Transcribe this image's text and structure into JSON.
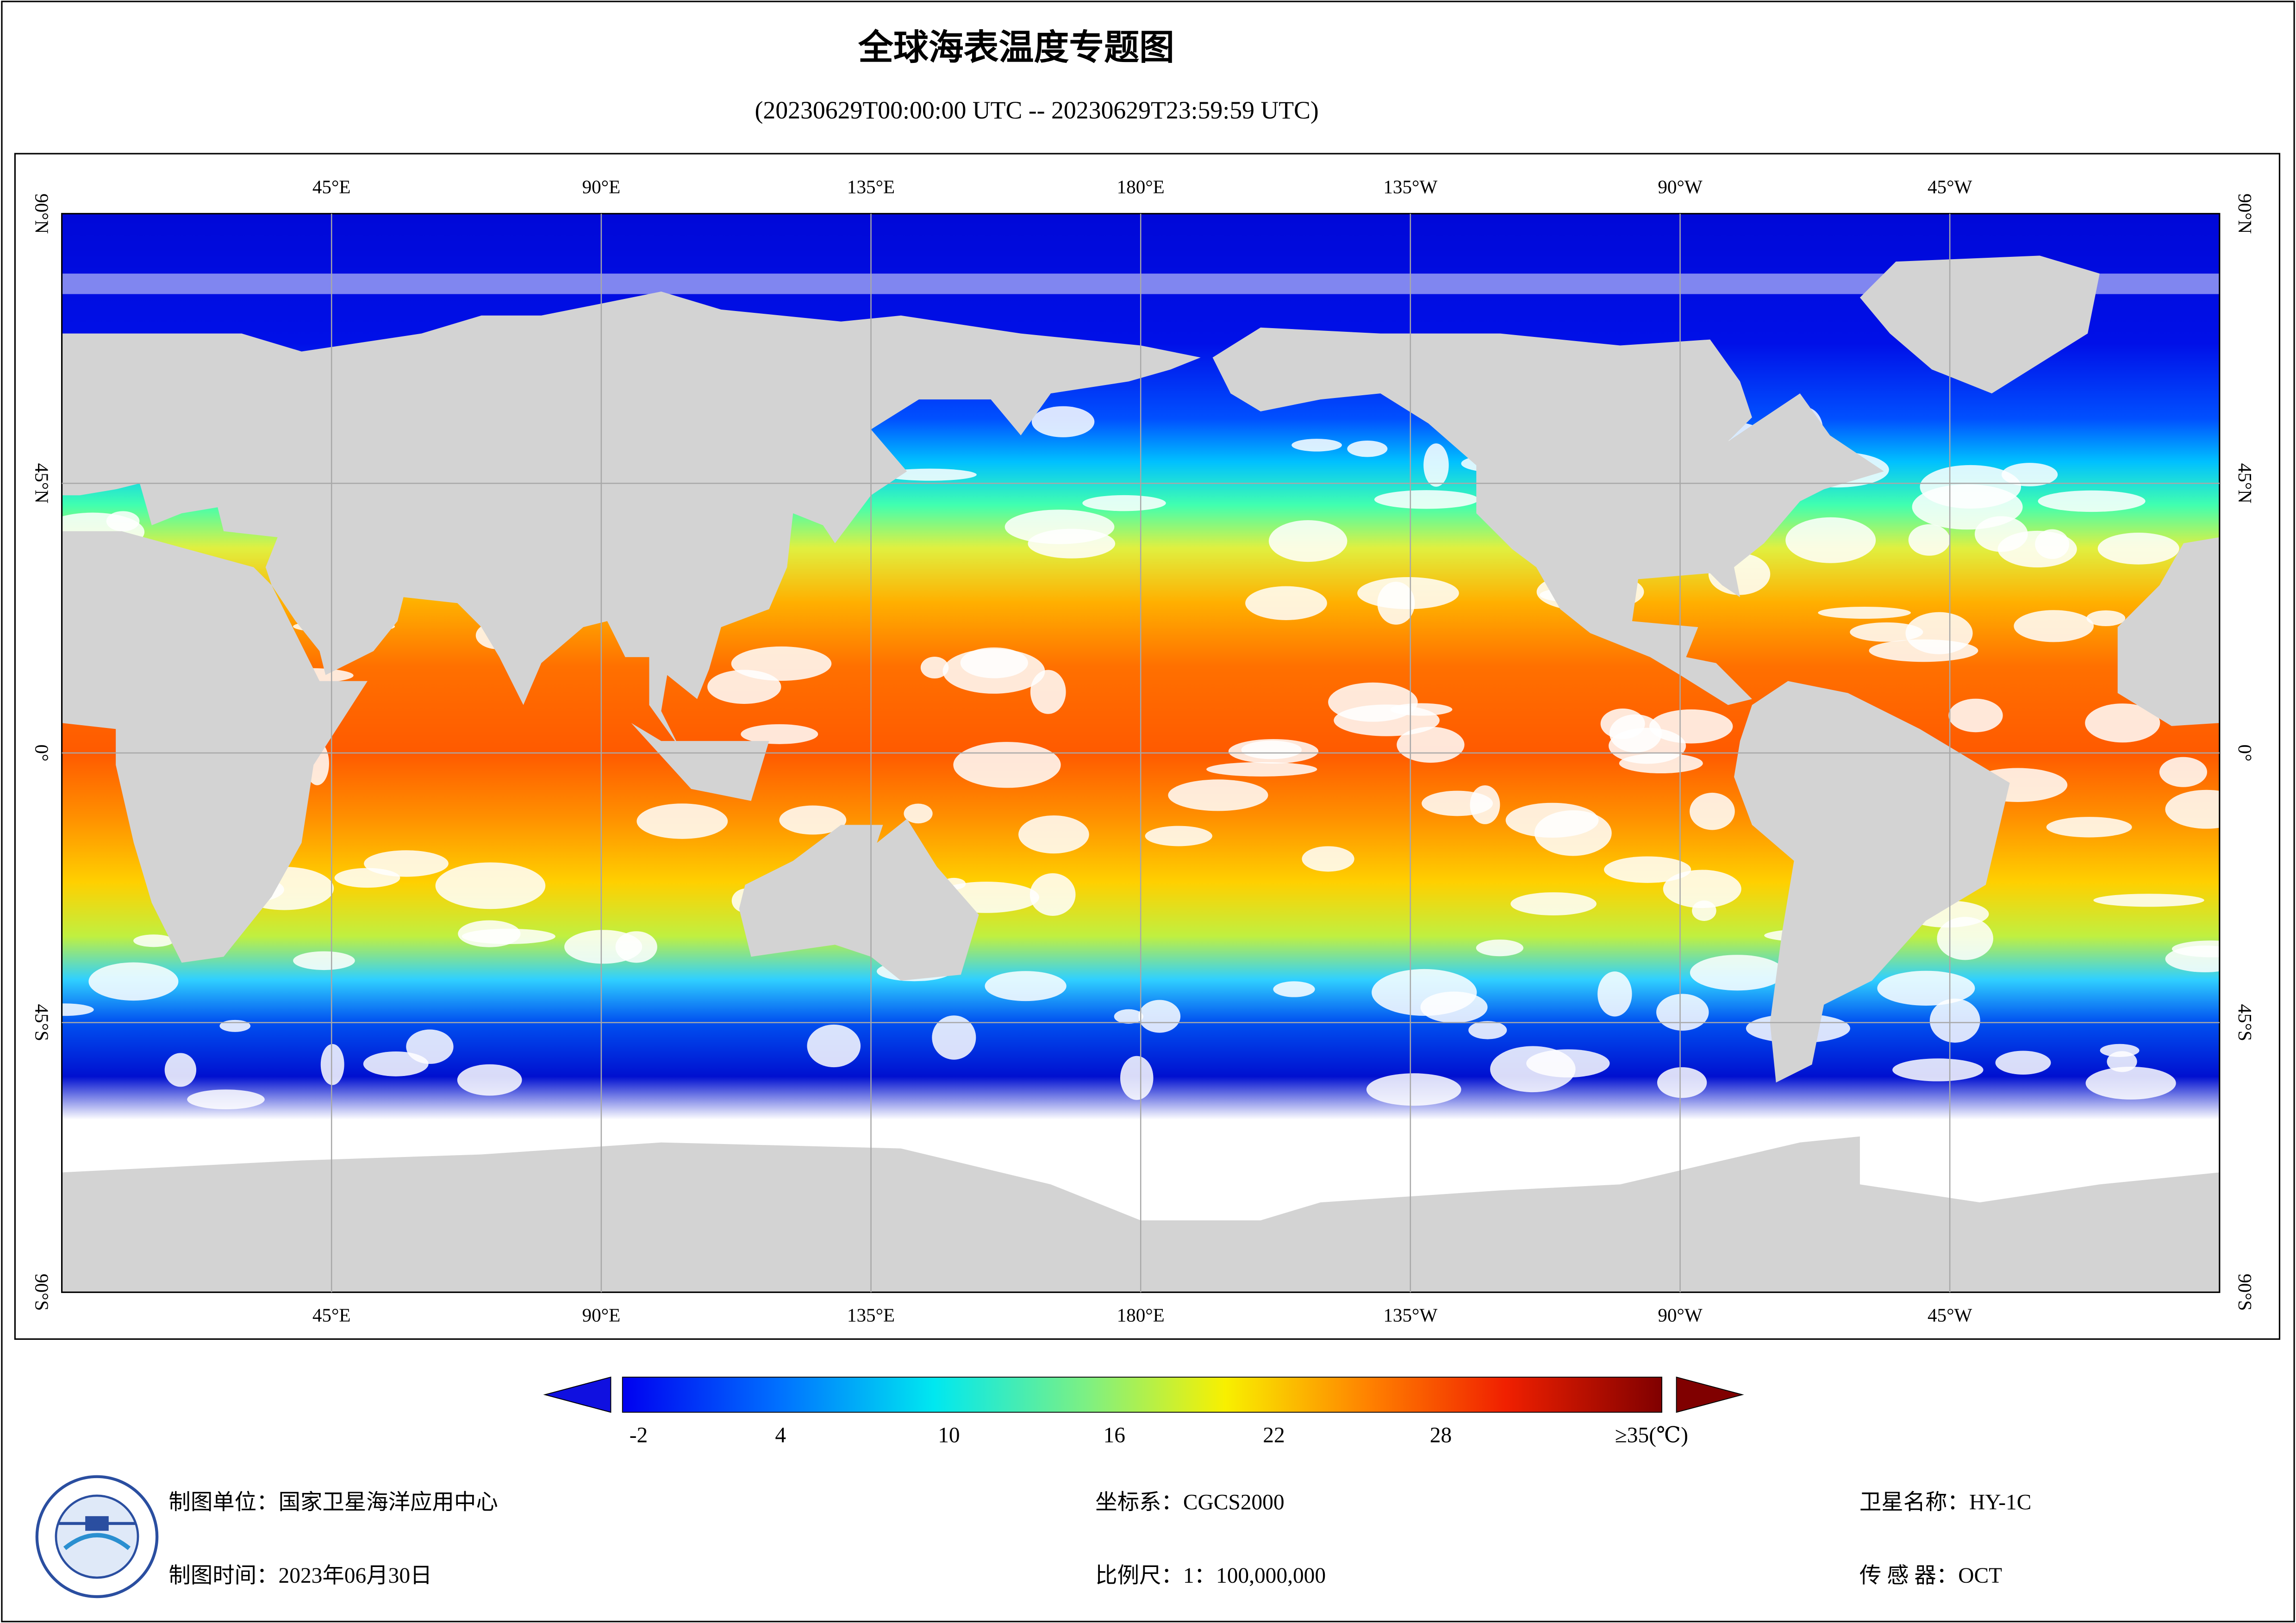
{
  "header": {
    "title": "全球海表温度专题图",
    "time_range": "(20230629T00:00:00 UTC -- 20230629T23:59:59 UTC)"
  },
  "map": {
    "longitude_labels": [
      "45°E",
      "90°E",
      "135°E",
      "180°E",
      "135°W",
      "90°W",
      "45°W"
    ],
    "latitude_labels": [
      "90°N",
      "45°N",
      "0°",
      "45°S",
      "90°S"
    ]
  },
  "colorbar": {
    "labels": [
      "-2",
      "4",
      "10",
      "16",
      "22",
      "28",
      "≥35(℃)"
    ]
  },
  "footer": {
    "producer": "制图单位：国家卫星海洋应用中心",
    "date": "制图时间：2023年06月30日",
    "crs": "坐标系：CGCS2000",
    "scale": "比例尺：1：100,000,000",
    "satellite": "卫星名称：HY-1C",
    "sensor": "传 感 器：OCT"
  }
}
